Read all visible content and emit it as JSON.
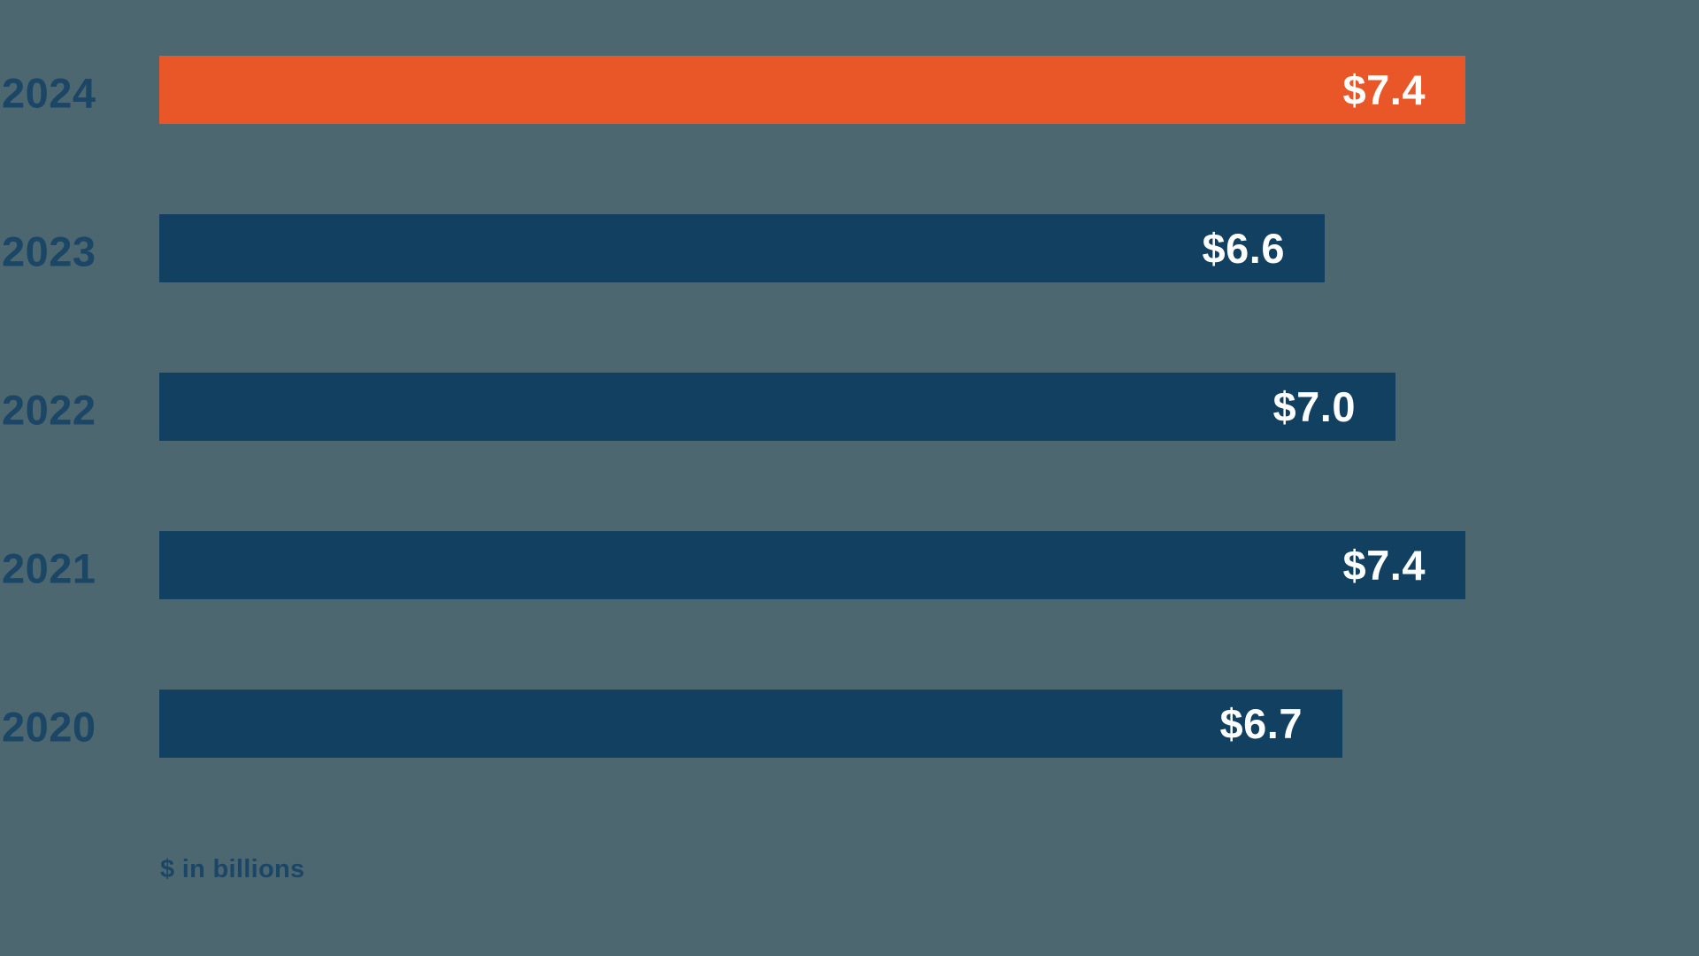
{
  "chart_data": {
    "type": "bar",
    "orientation": "horizontal",
    "title": "",
    "categories": [
      "2024",
      "2023",
      "2022",
      "2021",
      "2020"
    ],
    "values": [
      7.4,
      6.6,
      7.0,
      7.4,
      6.7
    ],
    "value_labels": [
      "$7.4",
      "$6.6",
      "$7.0",
      "$7.4",
      "$6.7"
    ],
    "unit_note": "$ in billions",
    "xlim": [
      0,
      7.4
    ],
    "grid": "off",
    "legend": "none",
    "highlight_category": "2024",
    "colors": {
      "background": "#4D6771",
      "default_bar": "#114061",
      "highlight_bar": "#E95627",
      "value_label_text": "#FFFFFF",
      "year_label_text": "#1B4666",
      "note_text": "#1B4666"
    }
  }
}
